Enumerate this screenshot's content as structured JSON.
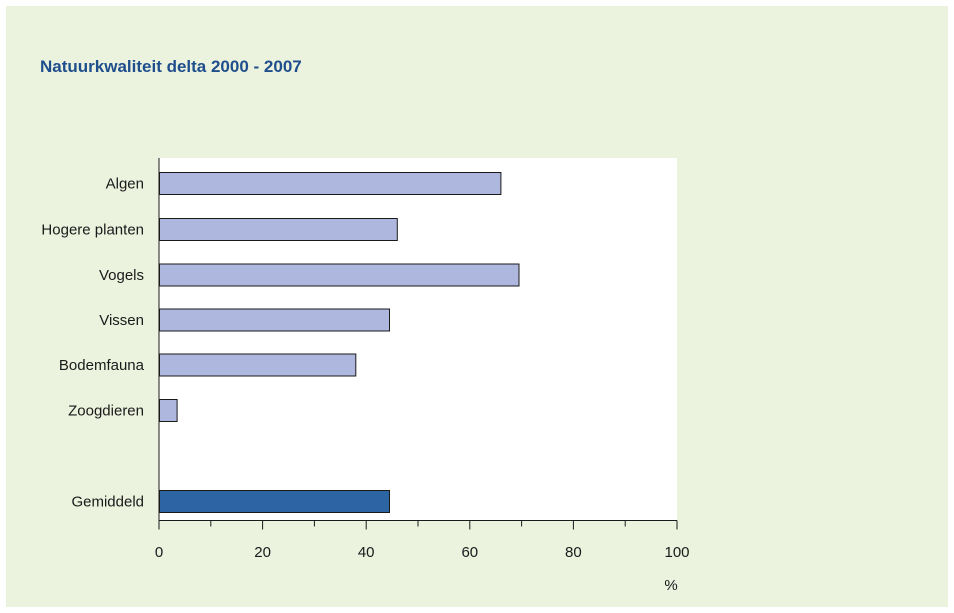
{
  "chart_data": {
    "type": "bar",
    "orientation": "horizontal",
    "title": "Natuurkwaliteit delta 2000 - 2007",
    "xlabel": "%",
    "ylabel": "",
    "categories": [
      "Algen",
      "Hogere planten",
      "Vogels",
      "Vissen",
      "Bodemfauna",
      "Zoogdieren",
      "Gemiddeld"
    ],
    "values": [
      66,
      46,
      69.5,
      44.5,
      38,
      3.5,
      44.5
    ],
    "highlight_category": "Gemiddeld",
    "xlim": [
      0,
      100
    ],
    "xticks": [
      0,
      20,
      40,
      60,
      80,
      100
    ],
    "grid": false,
    "legend": "none",
    "colors": {
      "bar": "#aeb7de",
      "highlight_bar": "#2c64a4",
      "bar_border": "#1a1a1a",
      "plot_background": "#ffffff",
      "page_background": "#ebf2de",
      "title": "#1f4e8c"
    }
  }
}
